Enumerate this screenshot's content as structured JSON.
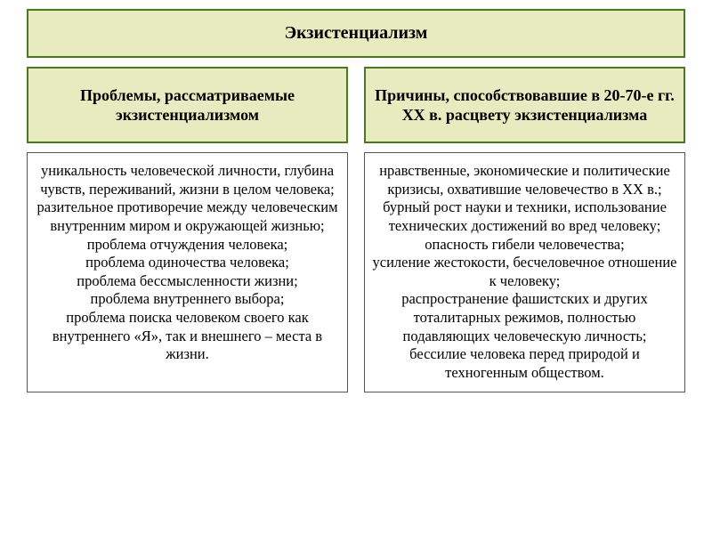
{
  "colors": {
    "box_bg": "#e8ebc0",
    "box_border": "#4a7a20",
    "content_border": "#555555",
    "page_bg": "#ffffff",
    "text": "#000000"
  },
  "typography": {
    "font_family": "Times New Roman",
    "title_size_pt": 20,
    "subheader_size_pt": 18,
    "body_size_pt": 16.5,
    "title_weight": "bold",
    "subheader_weight": "bold"
  },
  "title": "Экзистенциализм",
  "left": {
    "heading": "Проблемы, рассматриваемые экзистенциализмом",
    "items": [
      "уникальность человеческой личности, глубина чувств, переживаний, жизни в целом человека;",
      "разительное противоречие между человеческим внутренним миром и окружающей жизнью;",
      "проблема отчуждения человека;",
      "проблема одиночества человека;",
      "проблема бессмысленности жизни;",
      "проблема внутреннего выбора;",
      "проблема поиска человеком своего как внутреннего «Я», так и внешнего – места в жизни."
    ]
  },
  "right": {
    "heading": "Причины, способствовавшие в 20-70-е гг. XX в. расцвету экзистенциализма",
    "items": [
      "нравственные, экономические и политические кризисы, охватившие человечество в XX в.;",
      "бурный рост науки и техники, использование технических достижений во вред человеку;",
      "опасность гибели человечества;",
      "усиление жестокости, бесчеловечное отношение к человеку;",
      "распространение фашистских и других тоталитарных режимов, полностью подавляющих человеческую личность;",
      "бессилие человека перед природой и техногенным обществом."
    ]
  }
}
